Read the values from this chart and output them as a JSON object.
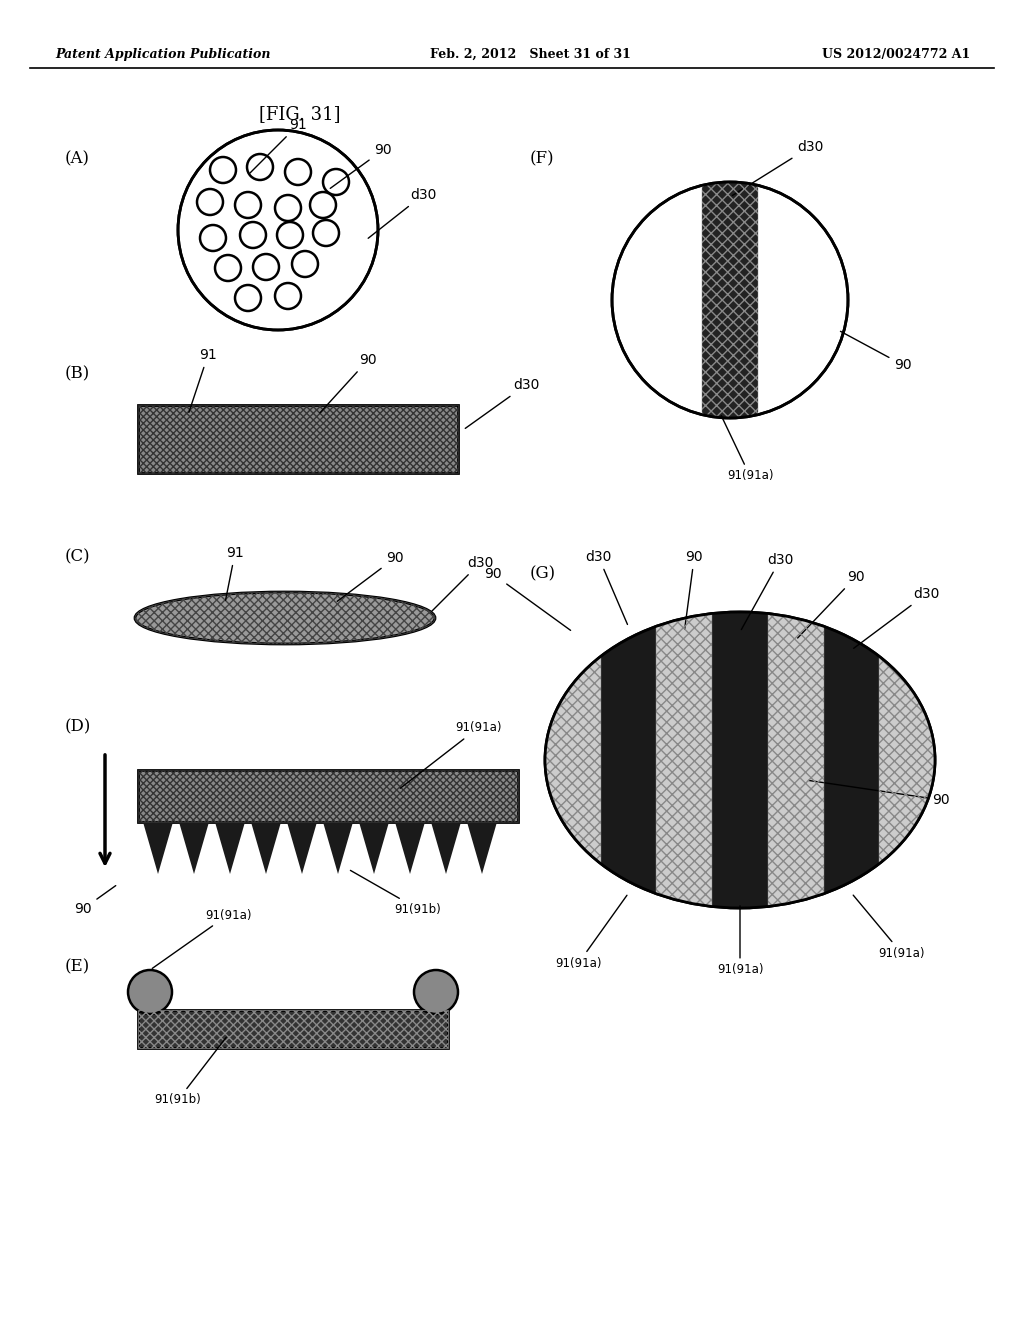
{
  "bg_color": "#ffffff",
  "header_left": "Patent Application Publication",
  "header_mid": "Feb. 2, 2012   Sheet 31 of 31",
  "header_right": "US 2012/0024772 A1",
  "fig_label": "[FIG. 31]",
  "dark_fill": "#1a1a1a",
  "med_fill": "#888888",
  "hatch_fill": "#aaaaaa",
  "stripe_dark": "#222222",
  "stripe_light": "#cccccc"
}
